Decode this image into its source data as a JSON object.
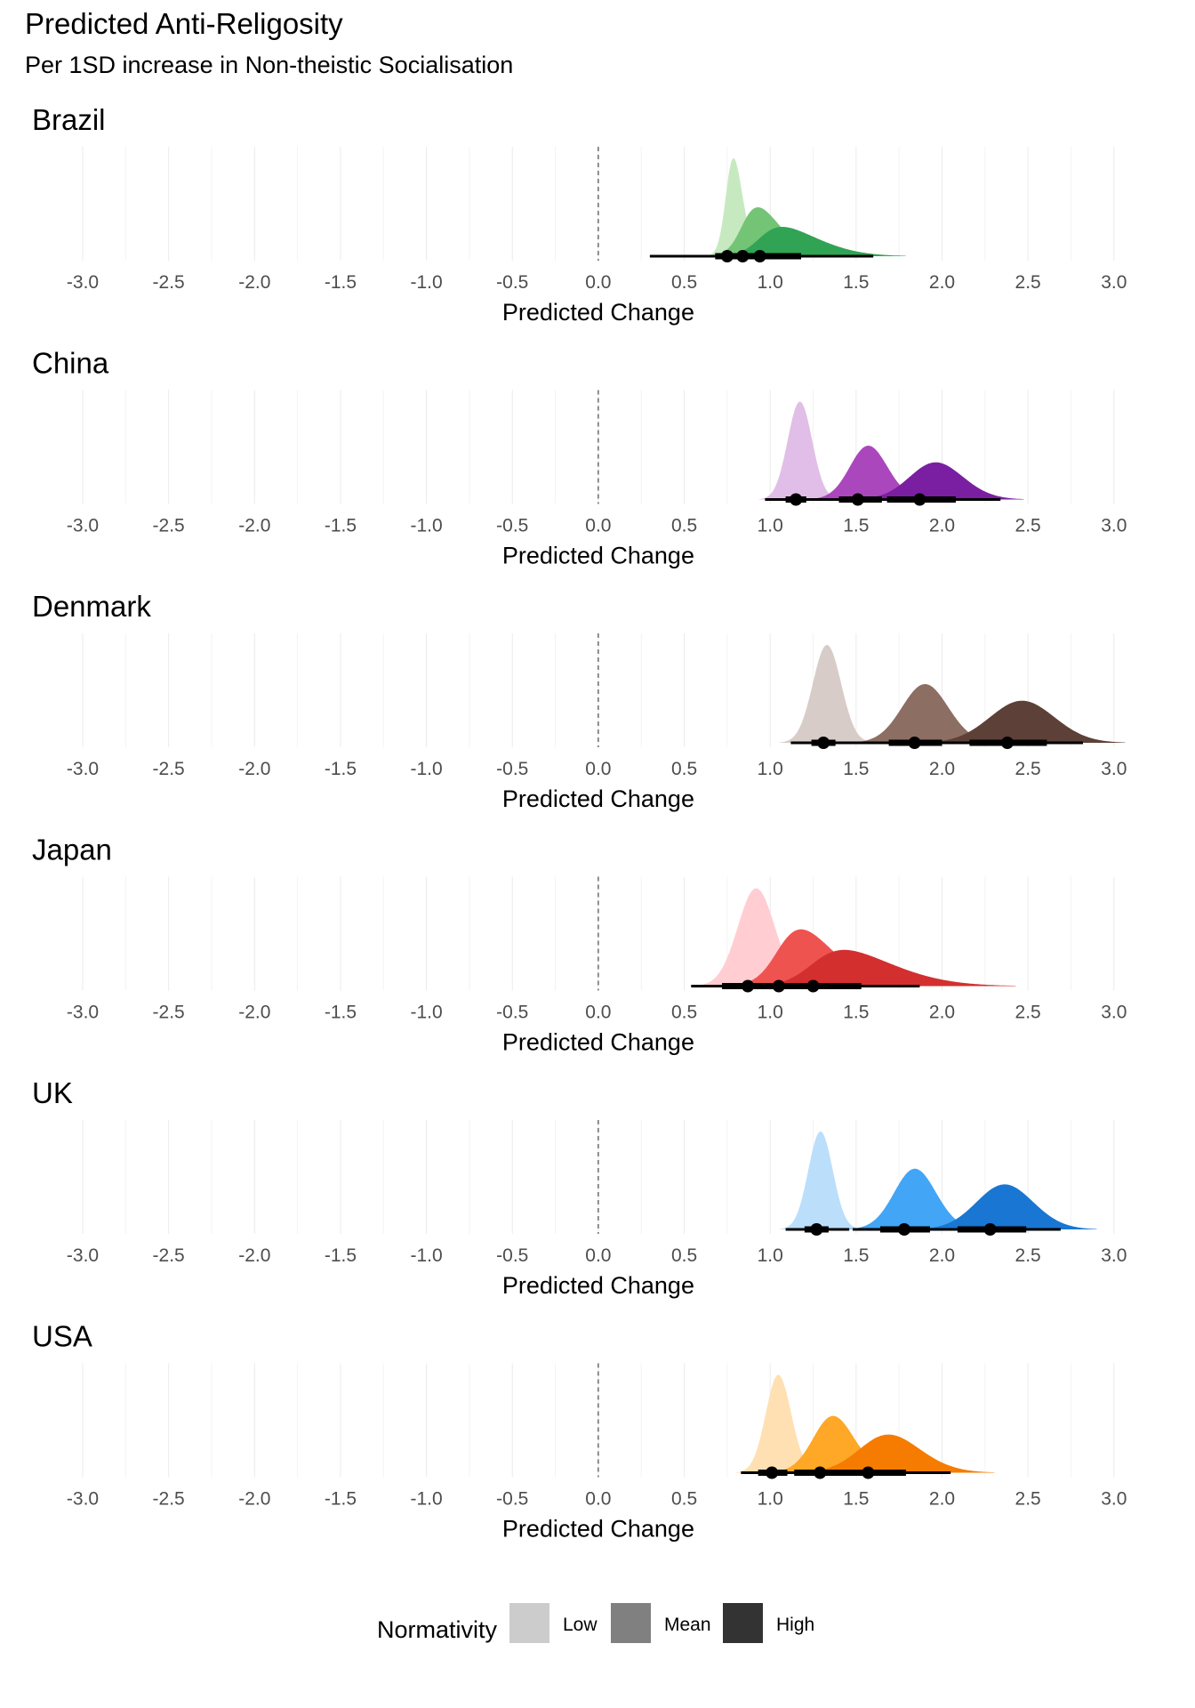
{
  "title": "Predicted Anti-Religosity",
  "subtitle": "Per 1SD increase in Non-theistic Socialisation",
  "legend": {
    "title": "Normativity",
    "items": [
      {
        "label": "Low",
        "color": "#cccccc"
      },
      {
        "label": "Mean",
        "color": "#808080"
      },
      {
        "label": "High",
        "color": "#333333"
      }
    ]
  },
  "chart_data": {
    "type": "area",
    "subtype": "halfeye density with point and interval, small multiples by country",
    "xlabel": "Predicted Change",
    "xlim": [
      -3.3,
      3.3
    ],
    "xticks": [
      -3.0,
      -2.5,
      -2.0,
      -1.5,
      -1.0,
      -0.5,
      0.0,
      0.5,
      1.0,
      1.5,
      2.0,
      2.5,
      3.0
    ],
    "xtick_labels": [
      "-3.0",
      "-2.5",
      "-2.0",
      "-1.5",
      "-1.0",
      "-0.5",
      "0.0",
      "0.5",
      "1.0",
      "1.5",
      "2.0",
      "2.5",
      "3.0"
    ],
    "reference_line": 0.0,
    "grid": "vertical major and minor",
    "legend_position": "bottom",
    "panels": [
      {
        "facet": "Brazil",
        "series": [
          {
            "name": "Low",
            "color": "#c7e9c0",
            "mean": 0.75,
            "sd": 0.07,
            "skew": 1.5,
            "height": 1.0,
            "point": 0.75,
            "interval_66": [
              0.68,
              0.84
            ],
            "interval_95": [
              0.42,
              1.2
            ]
          },
          {
            "name": "Mean",
            "color": "#74c476",
            "mean": 0.84,
            "sd": 0.18,
            "skew": 2.3,
            "height": 0.5,
            "point": 0.84,
            "interval_66": [
              0.7,
              1.02
            ],
            "interval_95": [
              0.4,
              1.4
            ]
          },
          {
            "name": "High",
            "color": "#31a354",
            "mean": 0.94,
            "sd": 0.28,
            "skew": 2.8,
            "height": 0.3,
            "point": 0.94,
            "interval_66": [
              0.72,
              1.18
            ],
            "interval_95": [
              0.3,
              1.6
            ]
          }
        ]
      },
      {
        "facet": "China",
        "series": [
          {
            "name": "Low",
            "color": "#e1bee7",
            "mean": 1.15,
            "sd": 0.075,
            "skew": 0.4,
            "height": 1.0,
            "point": 1.15,
            "interval_66": [
              1.09,
              1.21
            ],
            "interval_95": [
              0.97,
              1.34
            ]
          },
          {
            "name": "Mean",
            "color": "#ab47bc",
            "mean": 1.51,
            "sd": 0.13,
            "skew": 0.8,
            "height": 0.55,
            "point": 1.51,
            "interval_66": [
              1.4,
              1.65
            ],
            "interval_95": [
              1.23,
              1.92
            ]
          },
          {
            "name": "High",
            "color": "#7b1fa2",
            "mean": 1.87,
            "sd": 0.19,
            "skew": 0.9,
            "height": 0.38,
            "point": 1.87,
            "interval_66": [
              1.68,
              2.08
            ],
            "interval_95": [
              1.44,
              2.34
            ]
          }
        ]
      },
      {
        "facet": "Denmark",
        "series": [
          {
            "name": "Low",
            "color": "#d7ccc8",
            "mean": 1.31,
            "sd": 0.085,
            "skew": 0.3,
            "height": 1.0,
            "point": 1.31,
            "interval_66": [
              1.24,
              1.38
            ],
            "interval_95": [
              1.12,
              1.52
            ]
          },
          {
            "name": "Mean",
            "color": "#8d6e63",
            "mean": 1.84,
            "sd": 0.15,
            "skew": 0.6,
            "height": 0.6,
            "point": 1.84,
            "interval_66": [
              1.69,
              2.0
            ],
            "interval_95": [
              1.49,
              2.28
            ]
          },
          {
            "name": "High",
            "color": "#5d4037",
            "mean": 2.38,
            "sd": 0.21,
            "skew": 0.6,
            "height": 0.43,
            "point": 2.38,
            "interval_66": [
              2.16,
              2.61
            ],
            "interval_95": [
              1.9,
              2.82
            ]
          }
        ]
      },
      {
        "facet": "Japan",
        "series": [
          {
            "name": "Low",
            "color": "#ffcdd2",
            "mean": 0.87,
            "sd": 0.12,
            "skew": 0.6,
            "height": 1.0,
            "point": 0.87,
            "interval_66": [
              0.72,
              0.99
            ],
            "interval_95": [
              0.54,
              1.18
            ]
          },
          {
            "name": "Mean",
            "color": "#ef5350",
            "mean": 1.05,
            "sd": 0.26,
            "skew": 2.2,
            "height": 0.58,
            "point": 1.05,
            "interval_66": [
              0.86,
              1.29
            ],
            "interval_95": [
              0.55,
              1.58
            ]
          },
          {
            "name": "High",
            "color": "#d32f2f",
            "mean": 1.25,
            "sd": 0.38,
            "skew": 2.6,
            "height": 0.37,
            "point": 1.25,
            "interval_66": [
              1.0,
              1.53
            ],
            "interval_95": [
              0.55,
              1.87
            ]
          }
        ]
      },
      {
        "facet": "UK",
        "series": [
          {
            "name": "Low",
            "color": "#bbdefb",
            "mean": 1.27,
            "sd": 0.075,
            "skew": 0.4,
            "height": 1.0,
            "point": 1.27,
            "interval_66": [
              1.2,
              1.34
            ],
            "interval_95": [
              1.09,
              1.46
            ]
          },
          {
            "name": "Mean",
            "color": "#42a5f5",
            "mean": 1.78,
            "sd": 0.14,
            "skew": 0.7,
            "height": 0.62,
            "point": 1.78,
            "interval_66": [
              1.64,
              1.93
            ],
            "interval_95": [
              1.48,
              2.19
            ]
          },
          {
            "name": "High",
            "color": "#1976d2",
            "mean": 2.28,
            "sd": 0.19,
            "skew": 0.7,
            "height": 0.46,
            "point": 2.28,
            "interval_66": [
              2.09,
              2.49
            ],
            "interval_95": [
              1.88,
              2.69
            ]
          }
        ]
      },
      {
        "facet": "USA",
        "series": [
          {
            "name": "Low",
            "color": "#ffe0b2",
            "mean": 1.01,
            "sd": 0.085,
            "skew": 0.7,
            "height": 1.0,
            "point": 1.01,
            "interval_66": [
              0.93,
              1.1
            ],
            "interval_95": [
              0.83,
              1.24
            ]
          },
          {
            "name": "Mean",
            "color": "#ffa726",
            "mean": 1.29,
            "sd": 0.15,
            "skew": 1.0,
            "height": 0.58,
            "point": 1.29,
            "interval_66": [
              1.14,
              1.45
            ],
            "interval_95": [
              0.96,
              1.72
            ]
          },
          {
            "name": "High",
            "color": "#f57c00",
            "mean": 1.57,
            "sd": 0.23,
            "skew": 1.1,
            "height": 0.39,
            "point": 1.57,
            "interval_66": [
              1.36,
              1.79
            ],
            "interval_95": [
              1.05,
              2.05
            ]
          }
        ]
      }
    ]
  }
}
